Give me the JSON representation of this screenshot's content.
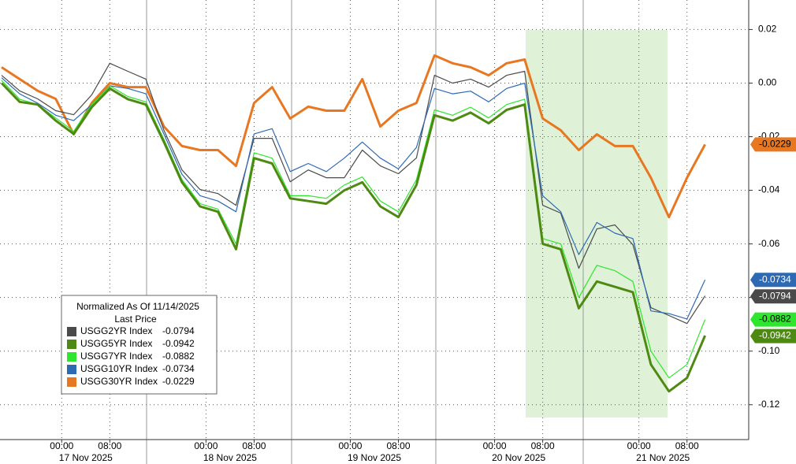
{
  "chart_data": {
    "type": "line",
    "x": [
      -10,
      -7,
      -4,
      -1,
      2,
      5,
      8,
      11,
      14,
      17,
      20,
      23,
      26,
      29,
      32,
      35,
      38,
      41,
      44,
      47,
      50,
      53,
      56,
      59,
      62,
      65,
      68,
      71,
      74,
      77,
      80,
      83,
      86,
      89,
      92,
      95,
      98,
      101,
      104,
      107
    ],
    "xlim": [
      -10,
      114
    ],
    "xticks": [
      {
        "value": 0,
        "label": "00:00"
      },
      {
        "value": 8,
        "label": "08:00"
      },
      {
        "value": 24,
        "label": "00:00"
      },
      {
        "value": 32,
        "label": "08:00"
      },
      {
        "value": 48,
        "label": "00:00"
      },
      {
        "value": 56,
        "label": "08:00"
      },
      {
        "value": 72,
        "label": "00:00"
      },
      {
        "value": 80,
        "label": "08:00"
      },
      {
        "value": 96,
        "label": "00:00"
      },
      {
        "value": 104,
        "label": "08:00"
      }
    ],
    "xdate_labels": [
      {
        "value": 4,
        "label": "17 Nov 2025"
      },
      {
        "value": 28,
        "label": "18 Nov 2025"
      },
      {
        "value": 52,
        "label": "19 Nov 2025"
      },
      {
        "value": 76,
        "label": "20 Nov 2025"
      },
      {
        "value": 100,
        "label": "21 Nov 2025"
      }
    ],
    "ylim": [
      -0.133,
      0.031
    ],
    "yticks": [
      0.02,
      {
        "value": 0,
        "label": "0.00"
      },
      -0.02,
      -0.04,
      -0.06,
      -0.08,
      {
        "value": -0.1,
        "label": "-0.10"
      },
      -0.12
    ],
    "grid": true,
    "legend_title": "Normalized As Of 11/14/2025",
    "legend_subtitle": "Last Price",
    "series": [
      {
        "name": "USGG2YR Index",
        "color": "#4a4a4a",
        "values": [
          0.0029,
          -0.0029,
          -0.0059,
          -0.0103,
          -0.0118,
          -0.0044,
          0.0074,
          0.0044,
          0.0015,
          -0.0176,
          -0.0324,
          -0.0397,
          -0.0412,
          -0.0456,
          -0.0206,
          -0.0206,
          -0.0368,
          -0.0324,
          -0.0353,
          -0.0353,
          -0.025,
          -0.0309,
          -0.0338,
          -0.0279,
          0.0029,
          0,
          0.0015,
          -0.0015,
          0.0029,
          0.0044,
          -0.0456,
          -0.0485,
          -0.0691,
          -0.0544,
          -0.0529,
          -0.0603,
          -0.0838,
          -0.0867,
          -0.0897,
          -0.0794
        ]
      },
      {
        "name": "USGG5YR Index",
        "color": "#4e8a12",
        "values": [
          0,
          -0.007,
          -0.008,
          -0.014,
          -0.019,
          -0.009,
          -0.002,
          -0.006,
          -0.008,
          -0.022,
          -0.037,
          -0.046,
          -0.048,
          -0.062,
          -0.028,
          -0.03,
          -0.043,
          -0.044,
          -0.045,
          -0.04,
          -0.037,
          -0.046,
          -0.05,
          -0.038,
          -0.012,
          -0.014,
          -0.011,
          -0.015,
          -0.01,
          -0.008,
          -0.06,
          -0.062,
          -0.084,
          -0.074,
          -0.076,
          -0.078,
          -0.105,
          -0.115,
          -0.11,
          -0.0942
        ]
      },
      {
        "name": "USGG7YR Index",
        "color": "#2ee62e",
        "values": [
          0.001,
          -0.006,
          -0.008,
          -0.013,
          -0.018,
          -0.008,
          -0.001,
          -0.005,
          -0.007,
          -0.021,
          -0.036,
          -0.045,
          -0.047,
          -0.06,
          -0.026,
          -0.028,
          -0.042,
          -0.042,
          -0.043,
          -0.038,
          -0.035,
          -0.044,
          -0.048,
          -0.036,
          -0.01,
          -0.012,
          -0.009,
          -0.013,
          -0.008,
          -0.006,
          -0.058,
          -0.06,
          -0.08,
          -0.068,
          -0.07,
          -0.074,
          -0.1,
          -0.11,
          -0.105,
          -0.0882
        ]
      },
      {
        "name": "USGG10YR Index",
        "color": "#2e6ab3",
        "values": [
          0.002,
          -0.004,
          -0.0075,
          -0.012,
          -0.014,
          -0.008,
          -0.001,
          -0.002,
          -0.004,
          -0.019,
          -0.034,
          -0.042,
          -0.044,
          -0.048,
          -0.019,
          -0.017,
          -0.033,
          -0.03,
          -0.033,
          -0.028,
          -0.022,
          -0.028,
          -0.032,
          -0.024,
          -0.002,
          -0.004,
          -0.003,
          -0.007,
          -0.002,
          0,
          -0.042,
          -0.048,
          -0.064,
          -0.052,
          -0.056,
          -0.058,
          -0.085,
          -0.086,
          -0.088,
          -0.0734
        ]
      },
      {
        "name": "USGG30YR Index",
        "color": "#e87722",
        "values": [
          0.0059,
          0.0015,
          -0.0029,
          -0.0059,
          -0.0191,
          -0.0074,
          0,
          -0.0015,
          -0.0015,
          -0.0162,
          -0.0235,
          -0.025,
          -0.025,
          -0.0309,
          -0.0074,
          -0.0015,
          -0.0132,
          -0.0088,
          -0.0103,
          -0.0103,
          0.0015,
          -0.0162,
          -0.0103,
          -0.0074,
          0.0103,
          0.0074,
          0.0059,
          0.0029,
          0.0074,
          0.0088,
          -0.0132,
          -0.0176,
          -0.025,
          -0.0191,
          -0.0235,
          -0.0235,
          -0.0353,
          -0.05,
          -0.0353,
          -0.0229
        ]
      }
    ]
  }
}
